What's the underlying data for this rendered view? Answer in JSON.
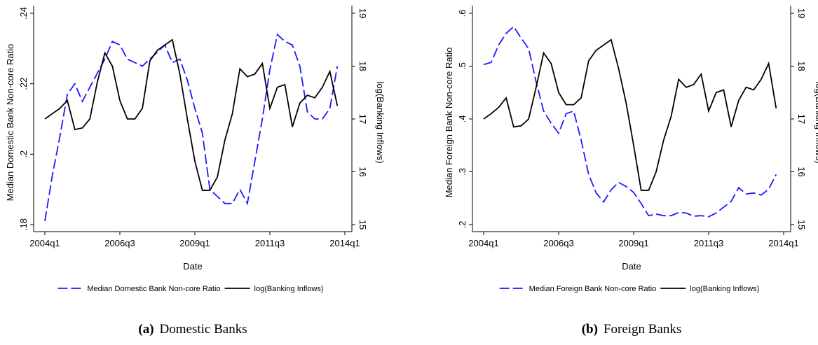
{
  "chart_data": [
    {
      "type": "line",
      "ylabel": "Median Domestic Bank Non-core Ratio",
      "y2label": "log(Banking Inflows)",
      "xlabel": "Date",
      "caption_label": "(a)",
      "caption": "Domestic Banks",
      "x": [
        "2004q1",
        "2004q2",
        "2004q3",
        "2004q4",
        "2005q1",
        "2005q2",
        "2005q3",
        "2005q4",
        "2006q1",
        "2006q2",
        "2006q3",
        "2006q4",
        "2007q1",
        "2007q2",
        "2007q3",
        "2007q4",
        "2008q1",
        "2008q2",
        "2008q3",
        "2008q4",
        "2009q1",
        "2009q2",
        "2009q3",
        "2009q4",
        "2010q1",
        "2010q2",
        "2010q3",
        "2010q4",
        "2011q1",
        "2011q2",
        "2011q3",
        "2011q4",
        "2012q1",
        "2012q2",
        "2012q3",
        "2012q4",
        "2013q1",
        "2013q2",
        "2013q3",
        "2013q4"
      ],
      "xlim": [
        "2004q1",
        "2014q1"
      ],
      "xticks": [
        "2004q1",
        "2006q3",
        "2009q1",
        "2011q3",
        "2014q1"
      ],
      "ylim": [
        0.18,
        0.24
      ],
      "yticks": [
        {
          "value": 0.18,
          "label": ".18"
        },
        {
          "value": 0.2,
          "label": ".2"
        },
        {
          "value": 0.22,
          "label": ".22"
        },
        {
          "value": 0.24,
          "label": ".24"
        }
      ],
      "y2lim": [
        15,
        19
      ],
      "y2ticks": [
        15,
        16,
        17,
        18,
        19
      ],
      "series": [
        {
          "name": "Median Domestic Bank Non-core Ratio",
          "color": "#1a1aff",
          "style": "dashed",
          "values": [
            0.181,
            0.194,
            0.205,
            0.217,
            0.22,
            0.215,
            0.219,
            0.223,
            0.227,
            0.232,
            0.231,
            0.227,
            0.226,
            0.225,
            0.227,
            0.229,
            0.231,
            0.226,
            0.227,
            0.221,
            0.213,
            0.206,
            0.19,
            0.188,
            0.186,
            0.186,
            0.19,
            0.186,
            0.198,
            0.21,
            0.224,
            0.234,
            0.232,
            0.231,
            0.225,
            0.212,
            0.21,
            0.21,
            0.213,
            0.225
          ]
        },
        {
          "name": "log(Banking Inflows)",
          "color": "#000000",
          "style": "solid",
          "axis": "y2",
          "values": [
            17.0,
            17.1,
            17.2,
            17.35,
            16.8,
            16.83,
            17.0,
            17.7,
            18.25,
            18.0,
            17.35,
            17.0,
            17.0,
            17.2,
            18.1,
            18.3,
            18.4,
            18.5,
            17.85,
            17.0,
            16.2,
            15.65,
            15.65,
            15.9,
            16.6,
            17.1,
            17.95,
            17.8,
            17.85,
            18.05,
            17.2,
            17.6,
            17.65,
            16.85,
            17.3,
            17.45,
            17.4,
            17.6,
            17.9,
            17.25
          ]
        }
      ]
    },
    {
      "type": "line",
      "ylabel": "Median Foreign Bank Non-core Ratio",
      "y2label": "log(Banking Inflows)",
      "xlabel": "Date",
      "caption_label": "(b)",
      "caption": "Foreign Banks",
      "x": [
        "2004q1",
        "2004q2",
        "2004q3",
        "2004q4",
        "2005q1",
        "2005q2",
        "2005q3",
        "2005q4",
        "2006q1",
        "2006q2",
        "2006q3",
        "2006q4",
        "2007q1",
        "2007q2",
        "2007q3",
        "2007q4",
        "2008q1",
        "2008q2",
        "2008q3",
        "2008q4",
        "2009q1",
        "2009q2",
        "2009q3",
        "2009q4",
        "2010q1",
        "2010q2",
        "2010q3",
        "2010q4",
        "2011q1",
        "2011q2",
        "2011q3",
        "2011q4",
        "2012q1",
        "2012q2",
        "2012q3",
        "2012q4",
        "2013q1",
        "2013q2",
        "2013q3",
        "2013q4"
      ],
      "xlim": [
        "2004q1",
        "2014q1"
      ],
      "xticks": [
        "2004q1",
        "2006q3",
        "2009q1",
        "2011q3",
        "2014q1"
      ],
      "ylim": [
        0.2,
        0.6
      ],
      "yticks": [
        {
          "value": 0.2,
          "label": ".2"
        },
        {
          "value": 0.3,
          "label": ".3"
        },
        {
          "value": 0.4,
          "label": ".4"
        },
        {
          "value": 0.5,
          "label": ".5"
        },
        {
          "value": 0.6,
          "label": ".6"
        }
      ],
      "y2lim": [
        15,
        19
      ],
      "y2ticks": [
        15,
        16,
        17,
        18,
        19
      ],
      "series": [
        {
          "name": "Median Foreign Bank Non-core Ratio",
          "color": "#1a1aff",
          "style": "dashed",
          "values": [
            0.503,
            0.507,
            0.54,
            0.562,
            0.575,
            0.553,
            0.533,
            0.47,
            0.415,
            0.392,
            0.373,
            0.41,
            0.415,
            0.36,
            0.295,
            0.26,
            0.243,
            0.266,
            0.28,
            0.272,
            0.261,
            0.24,
            0.217,
            0.22,
            0.217,
            0.217,
            0.223,
            0.222,
            0.216,
            0.217,
            0.215,
            0.222,
            0.233,
            0.244,
            0.27,
            0.258,
            0.26,
            0.256,
            0.267,
            0.295
          ]
        },
        {
          "name": "log(Banking Inflows)",
          "color": "#000000",
          "style": "solid",
          "axis": "y2",
          "values": [
            17.0,
            17.1,
            17.22,
            17.4,
            16.85,
            16.87,
            17.0,
            17.6,
            18.25,
            18.05,
            17.5,
            17.27,
            17.27,
            17.4,
            18.1,
            18.3,
            18.4,
            18.5,
            17.95,
            17.3,
            16.5,
            15.65,
            15.65,
            16.0,
            16.6,
            17.05,
            17.75,
            17.6,
            17.65,
            17.85,
            17.15,
            17.5,
            17.55,
            16.85,
            17.35,
            17.6,
            17.55,
            17.75,
            18.05,
            17.2
          ]
        }
      ]
    }
  ]
}
